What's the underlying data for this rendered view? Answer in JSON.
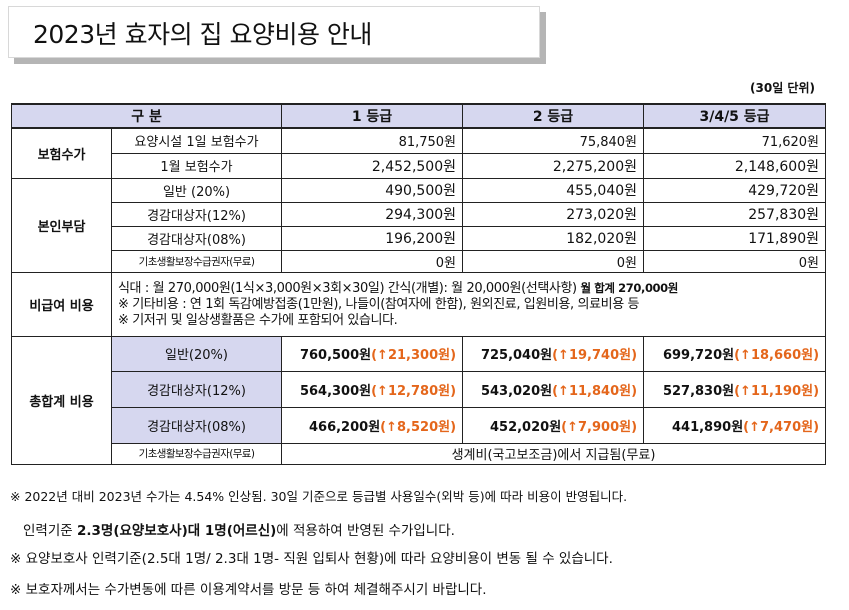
{
  "title": "2023년 효자의 집 요양비용 안내",
  "unit": "(30일 단위)",
  "header": {
    "category": "구 분",
    "g1": "1 등급",
    "g2": "2 등급",
    "g345": "3/4/5 등급"
  },
  "insurance": {
    "label": "보험수가",
    "rows": [
      {
        "sub": "요양시설 1일 보험수가",
        "v1": "81,750원",
        "v2": "75,840원",
        "v3": "71,620원"
      },
      {
        "sub": "1월 보험수가",
        "v1": "2,452,500원",
        "v2": "2,275,200원",
        "v3": "2,148,600원"
      }
    ]
  },
  "copay": {
    "label": "본인부담",
    "rows": [
      {
        "sub": "일반 (20%)",
        "v1": "490,500원",
        "v2": "455,040원",
        "v3": "429,720원"
      },
      {
        "sub": "경감대상자(12%)",
        "v1": "294,300원",
        "v2": "273,020원",
        "v3": "257,830원"
      },
      {
        "sub": "경감대상자(08%)",
        "v1": "196,200원",
        "v2": "182,020원",
        "v3": "171,890원"
      },
      {
        "sub": "기초생활보장수급권자(무료)",
        "v1": "0원",
        "v2": "0원",
        "v3": "0원"
      }
    ]
  },
  "nonbenefit": {
    "label": "비급여 비용",
    "line1": "식대 : 월 270,000원(1식×3,000원×3회×30일) 간식(개별): 월 20,000원(선택사항)",
    "line1_bold": "월 합계 270,000원",
    "line2": "※ 기타비용 : 연 1회 독감예방접종(1만원), 나들이(참여자에 한함), 원외진료, 입원비용, 의료비용 등",
    "line3": "※ 기저귀 및 일상생활품은 수가에 포함되어 있습니다."
  },
  "total": {
    "label": "총합계 비용",
    "rows": [
      {
        "sub": "일반(20%)",
        "v1": "760,500원",
        "i1": "(↑21,300원)",
        "v2": "725,040원",
        "i2": "(↑19,740원)",
        "v3": "699,720원",
        "i3": "(↑18,660원)"
      },
      {
        "sub": "경감대상자(12%)",
        "v1": "564,300원",
        "i1": "(↑12,780원)",
        "v2": "543,020원",
        "i2": "(↑11,840원)",
        "v3": "527,830원",
        "i3": "(↑11,190원)"
      },
      {
        "sub": "경감대상자(08%)",
        "v1": "466,200원",
        "i1": "(↑8,520원)",
        "v2": "452,020원",
        "i2": "(↑7,900원)",
        "v3": "441,890원",
        "i3": "(↑7,470원)"
      }
    ],
    "last_sub": "기초생활보장수급권자(무료)",
    "last_value": "생계비(국고보조금)에서 지급됨(무료)"
  },
  "notes": {
    "n1": "※ 2022년 대비 2023년 수가는 4.54% 인상됨.  30일 기준으로 등급별 사용일수(외박 등)에 따라 비용이 반영됩니다.",
    "n2_pre": "인력기준 ",
    "n2_bold": "2.3명(요양보호사)대 1명(어르신)",
    "n2_post": "에 적용하여 반영된 수가입니다.",
    "n3": "※ 요양보호사 인력기준(2.5대 1명/ 2.3대 1명- 직원 입퇴사 현황)에 따라 요양비용이 변동 될 수 있습니다.",
    "n4": "※ 보호자께서는 수가변동에 따른 이용계약서를 방문 등 하여 체결해주시기 바랍니다."
  },
  "colors": {
    "header_bg": "#d6d7ef",
    "increase": "#e4661b",
    "title_shadow": "#b5b5b5"
  }
}
